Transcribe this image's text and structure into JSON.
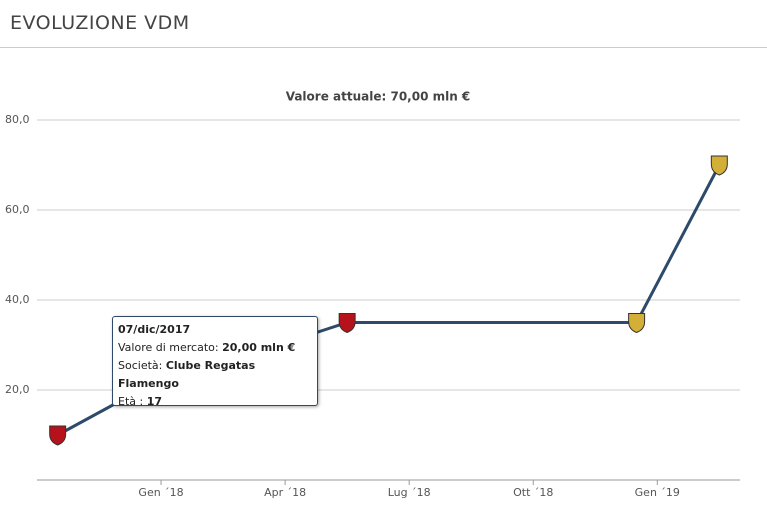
{
  "header": {
    "title": "EVOLUZIONE VDM"
  },
  "chart_data": {
    "type": "line",
    "subtitle": "Valore attuale: 70,00 mln €",
    "x": [
      "2017-10",
      "2017-12",
      "2018-05",
      "2018-12",
      "2019-02"
    ],
    "series": [
      {
        "color": "#2e4a6b",
        "values": [
          10,
          20,
          35,
          35,
          70
        ]
      }
    ],
    "marker_colors": [
      "#b5121b",
      "#b5121b",
      "#b5121b",
      "#d4af37",
      "#d4af37"
    ],
    "xlim": [
      "2017-10",
      "2019-03"
    ],
    "xticks": [
      {
        "value": "2018-01",
        "label": "Gen ´18"
      },
      {
        "value": "2018-04",
        "label": "Apr ´18"
      },
      {
        "value": "2018-07",
        "label": "Lug ´18"
      },
      {
        "value": "2018-10",
        "label": "Ott ´18"
      },
      {
        "value": "2019-01",
        "label": "Gen ´19"
      }
    ],
    "ylim": [
      0,
      80
    ],
    "yticks": [
      {
        "value": 20,
        "label": "20,0"
      },
      {
        "value": 40,
        "label": "40,0"
      },
      {
        "value": 60,
        "label": "60,0"
      },
      {
        "value": 80,
        "label": "80,0"
      }
    ],
    "grid": true,
    "tooltip": {
      "date": "07/dic/2017",
      "value_label": "Valore di mercato:",
      "value_text": "20,00 mln €",
      "club_label": "Società:",
      "club": "Clube Regatas Flamengo",
      "age_label": "Età :",
      "age": "17"
    }
  }
}
